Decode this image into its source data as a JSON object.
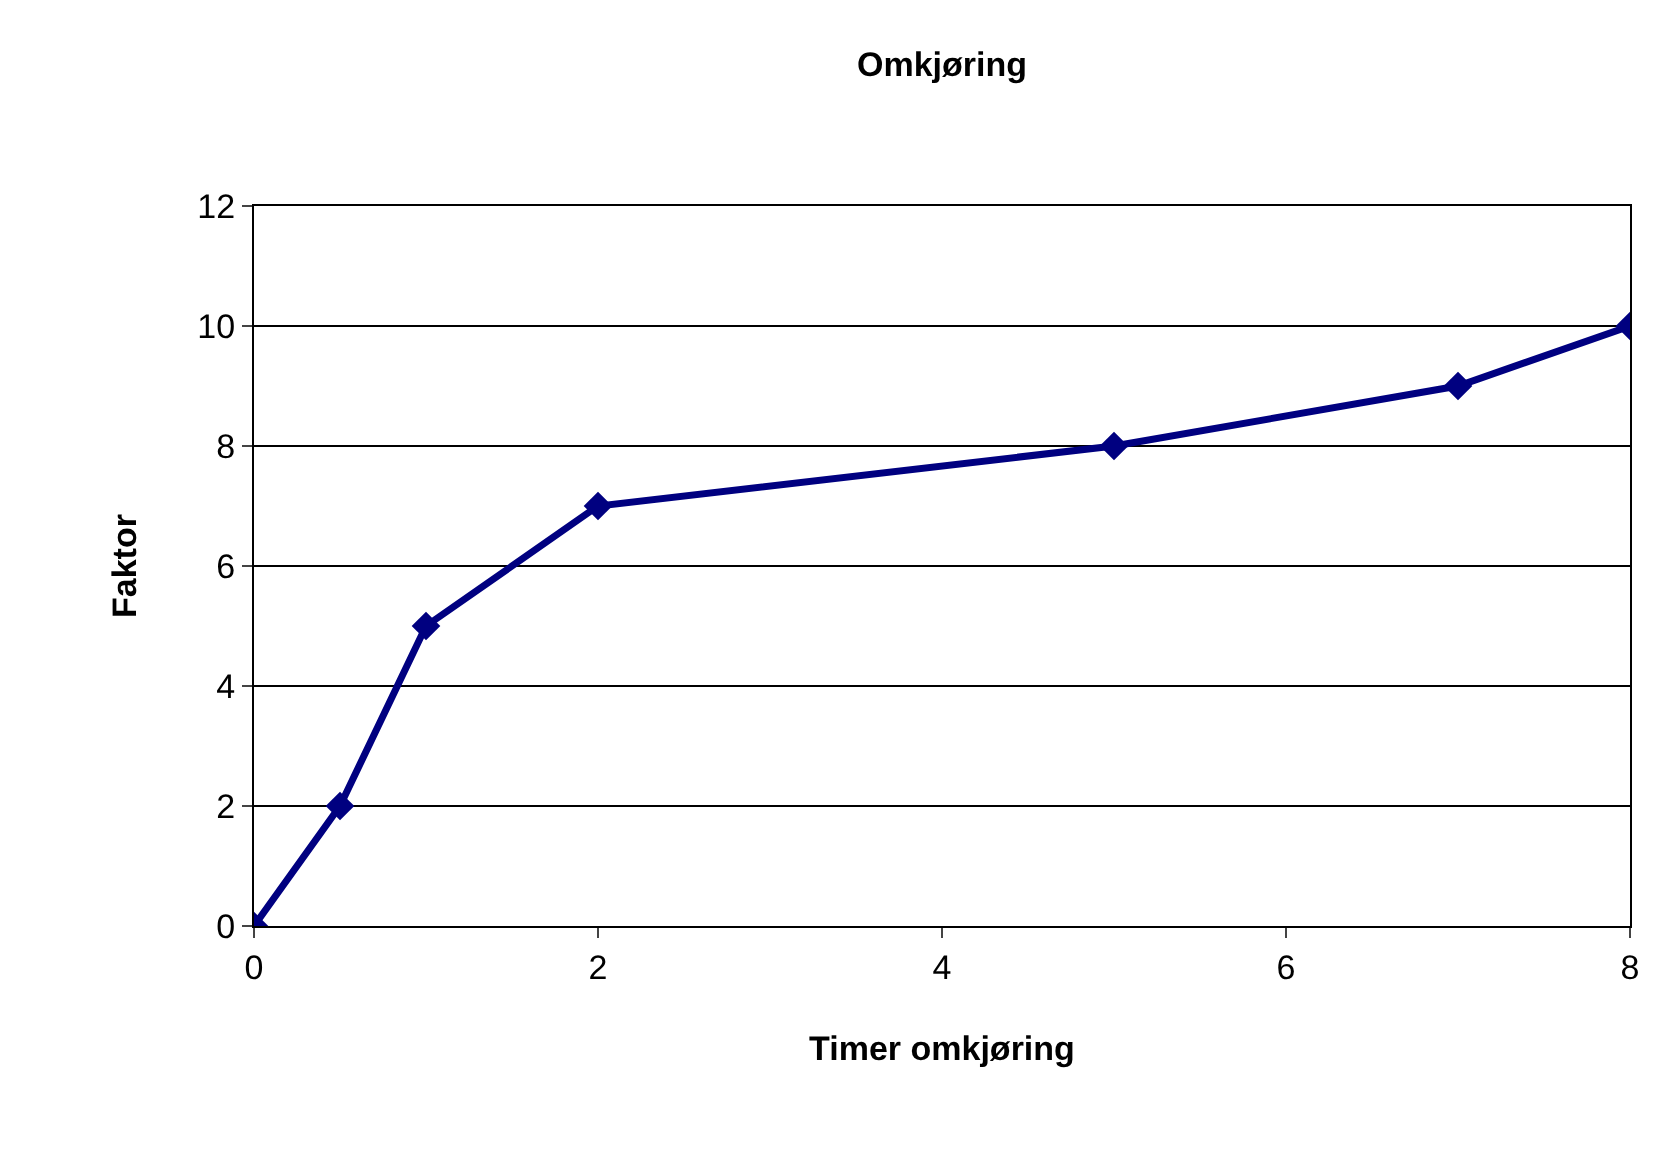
{
  "chart_data": {
    "type": "line",
    "title": "Omkjøring",
    "xlabel": "Timer omkjøring",
    "ylabel": "Faktor",
    "x": [
      0,
      0.5,
      1,
      2,
      5,
      7,
      8
    ],
    "series": [
      {
        "color": "#000080",
        "values": [
          0,
          2,
          5,
          7,
          8,
          9,
          10
        ]
      }
    ],
    "xlim": [
      0,
      8
    ],
    "xticks": [
      0,
      2,
      4,
      6,
      8
    ],
    "ylim": [
      0,
      12
    ],
    "yticks": [
      0,
      2,
      4,
      6,
      8,
      10,
      12
    ],
    "grid": "y",
    "marker": "diamond",
    "line_style": "solid"
  }
}
